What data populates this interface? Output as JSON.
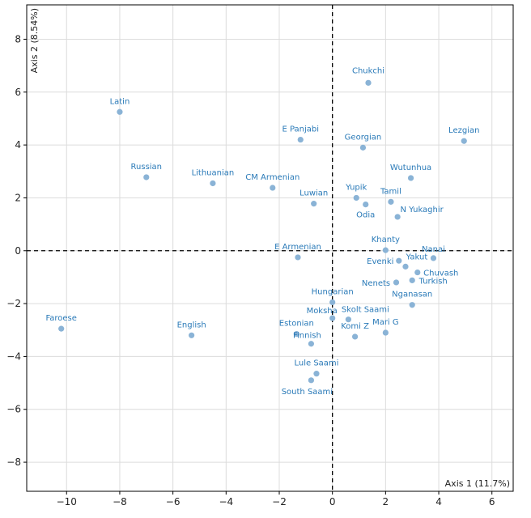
{
  "chart_data": {
    "type": "scatter",
    "xlabel": "Axis 1 (11.7%)",
    "ylabel": "Axis 2 (8.54%)",
    "xlim": [
      -11.5,
      6.8
    ],
    "ylim": [
      -9.1,
      9.3
    ],
    "x_ticks": [
      -10,
      -8,
      -6,
      -4,
      -2,
      0,
      2,
      4,
      6
    ],
    "y_ticks": [
      -8,
      -6,
      -4,
      -2,
      0,
      2,
      4,
      6,
      8
    ],
    "x_tick_labels": [
      "−10",
      "−8",
      "−6",
      "−4",
      "−2",
      "0",
      "2",
      "4",
      "6"
    ],
    "y_tick_labels": [
      "−8",
      "−6",
      "−4",
      "−2",
      "0",
      "2",
      "4",
      "6",
      "8"
    ],
    "grid": true,
    "reference_lines": [
      0,
      0
    ],
    "point_color": "#8ab3d6",
    "label_color": "#2a7ab8",
    "points": [
      {
        "label": "Chukchi",
        "x": 1.35,
        "y": 6.35
      },
      {
        "label": "Latin",
        "x": -8.0,
        "y": 5.25
      },
      {
        "label": "E Panjabi",
        "x": -1.2,
        "y": 4.2
      },
      {
        "label": "Georgian",
        "x": 1.15,
        "y": 3.9
      },
      {
        "label": "Lezgian",
        "x": 4.95,
        "y": 4.15
      },
      {
        "label": "Russian",
        "x": -7.0,
        "y": 2.78
      },
      {
        "label": "Lithuanian",
        "x": -4.5,
        "y": 2.55
      },
      {
        "label": "CM Armenian",
        "x": -2.25,
        "y": 2.38
      },
      {
        "label": "Wutunhua",
        "x": 2.95,
        "y": 2.75
      },
      {
        "label": "Luwian",
        "x": -0.7,
        "y": 1.78
      },
      {
        "label": "Yupik",
        "x": 0.9,
        "y": 2.0
      },
      {
        "label": "Tamil",
        "x": 2.2,
        "y": 1.85
      },
      {
        "label": "Odia",
        "x": 1.25,
        "y": 1.75
      },
      {
        "label": "N Yukaghir",
        "x": 2.45,
        "y": 1.28
      },
      {
        "label": "E Armenian",
        "x": -1.3,
        "y": -0.25
      },
      {
        "label": "Khanty",
        "x": 2.0,
        "y": 0.02
      },
      {
        "label": "Nanai",
        "x": 3.8,
        "y": -0.28
      },
      {
        "label": "Evenki",
        "x": 2.5,
        "y": -0.38
      },
      {
        "label": "Yakut",
        "x": 2.75,
        "y": -0.6
      },
      {
        "label": "Chuvash",
        "x": 3.2,
        "y": -0.82
      },
      {
        "label": "Nenets",
        "x": 2.4,
        "y": -1.2
      },
      {
        "label": "Turkish",
        "x": 3.0,
        "y": -1.12
      },
      {
        "label": "Hungarian",
        "x": 0.0,
        "y": -1.95
      },
      {
        "label": "Nganasan",
        "x": 3.0,
        "y": -2.05
      },
      {
        "label": "Moksha",
        "x": 0.0,
        "y": -2.55
      },
      {
        "label": "Skolt Saami",
        "x": 0.6,
        "y": -2.6
      },
      {
        "label": "Faroese",
        "x": -10.2,
        "y": -2.95
      },
      {
        "label": "English",
        "x": -5.3,
        "y": -3.2
      },
      {
        "label": "Estonian",
        "x": -1.35,
        "y": -3.15
      },
      {
        "label": "Finnish",
        "x": -0.8,
        "y": -3.52
      },
      {
        "label": "Komi Z",
        "x": 0.85,
        "y": -3.25
      },
      {
        "label": "Mari G",
        "x": 2.0,
        "y": -3.1
      },
      {
        "label": "Lule Saami",
        "x": -0.6,
        "y": -4.65
      },
      {
        "label": "South Saami",
        "x": -0.8,
        "y": -4.9
      }
    ]
  }
}
